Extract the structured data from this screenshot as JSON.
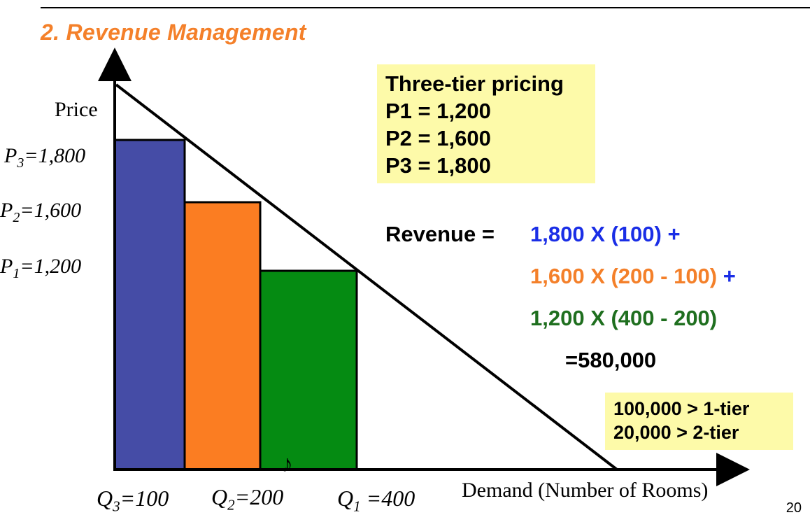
{
  "slide": {
    "title": "2. Revenue Management",
    "page_number": "20",
    "title_color": "#f4802a"
  },
  "axes": {
    "y_name": "Price",
    "x_name": "Demand (Number of Rooms)",
    "y_labels": [
      {
        "sym": "P",
        "sub": "3",
        "val": "=1,800"
      },
      {
        "sym": "P",
        "sub": "2",
        "val": "=1,600"
      },
      {
        "sym": "P",
        "sub": "1",
        "val": "=1,200"
      }
    ],
    "x_labels": [
      {
        "sym": "Q",
        "sub": "3",
        "val": "=100"
      },
      {
        "sym": "Q",
        "sub": "2",
        "val": "=200"
      },
      {
        "sym": "Q",
        "sub": "1",
        "val": " =400"
      }
    ]
  },
  "diagram": {
    "tiers": [
      {
        "name": "tier-3",
        "price": 1800,
        "q_from": 0,
        "q_to": 100,
        "color": "#454ca6"
      },
      {
        "name": "tier-2",
        "price": 1600,
        "q_from": 100,
        "q_to": 200,
        "color": "#fb7d22"
      },
      {
        "name": "tier-1",
        "price": 1200,
        "q_from": 200,
        "q_to": 400,
        "color": "#058b12"
      }
    ],
    "demand_line_color": "#000000"
  },
  "pricing_box": {
    "lines": [
      "Three-tier pricing",
      "P1 = 1,200",
      "P2 = 1,600",
      "P3 = 1,800"
    ],
    "bg": "#fdfaa9"
  },
  "revenue": {
    "label": "Revenue =",
    "line1": "1,800 X (100) +",
    "line2": "1,600 X (200 - 100)",
    "line2_plus": " +",
    "line3": "1,200 X (400 - 200)",
    "total": "=580,000",
    "colors": {
      "line1": "#1a2ee6",
      "line2": "#f4802a",
      "line3": "#1f6f1f",
      "plus": "#1a2ee6"
    }
  },
  "comparison_box": {
    "lines": [
      "100,000 > 1-tier",
      "20,000 > 2-tier"
    ],
    "bg": "#fdfaa9"
  },
  "note_glyph": "♪"
}
